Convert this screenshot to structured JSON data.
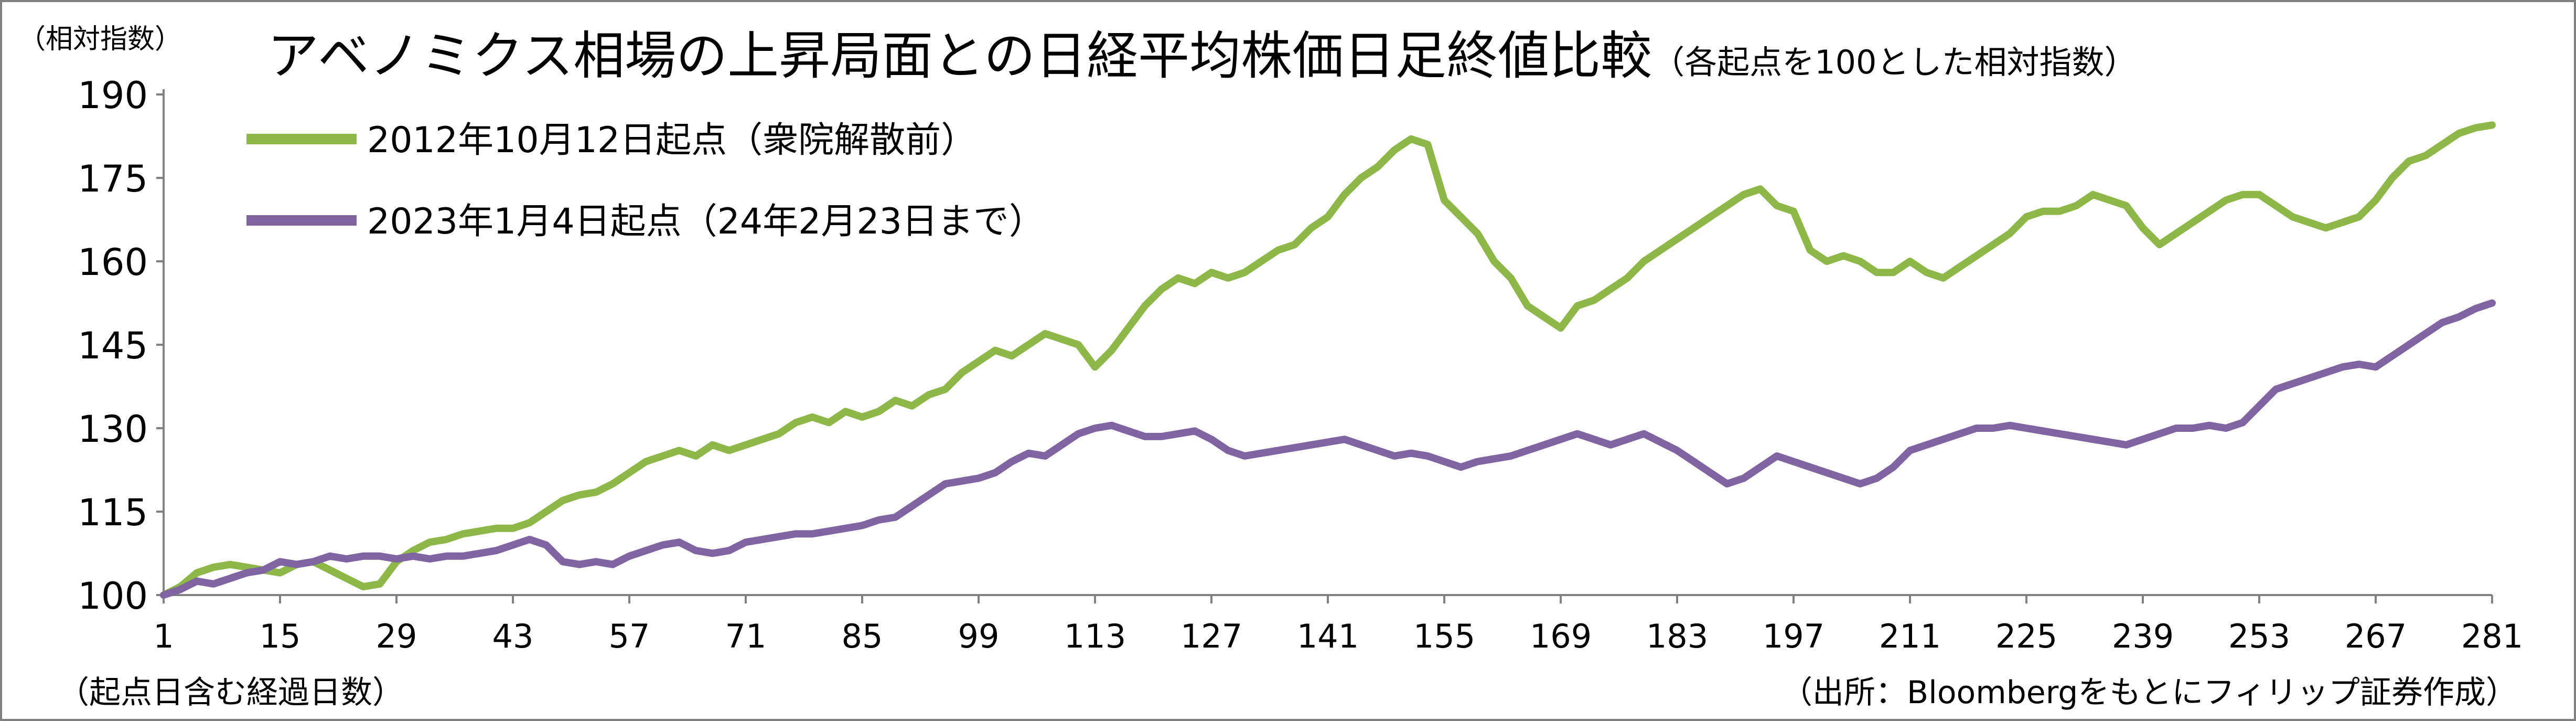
{
  "chart_data": {
    "type": "line",
    "title": "アベノミクス相場の上昇局面との日経平均株価日足終値比較",
    "subtitle": "（各起点を100とした相対指数）",
    "ylabel": "（相対指数）",
    "xlabel": "（起点日含む経過日数）",
    "source": "（出所：Bloombergをもとにフィリップ証券作成）",
    "ylim": [
      100,
      190
    ],
    "xlim": [
      1,
      281
    ],
    "y_ticks": [
      "100",
      "115",
      "130",
      "145",
      "160",
      "175",
      "190"
    ],
    "x_ticks": [
      "1",
      "15",
      "29",
      "43",
      "57",
      "71",
      "85",
      "99",
      "113",
      "127",
      "141",
      "155",
      "169",
      "183",
      "197",
      "211",
      "225",
      "239",
      "253",
      "267",
      "281"
    ],
    "legend_position": "top-left",
    "grid": false,
    "series": [
      {
        "name": "2012年10月12日起点（衆院解散前）",
        "color": "#8DB849",
        "points": [
          [
            1,
            100
          ],
          [
            3,
            101.5
          ],
          [
            5,
            104
          ],
          [
            7,
            105
          ],
          [
            9,
            105.5
          ],
          [
            11,
            105
          ],
          [
            13,
            104.5
          ],
          [
            15,
            104
          ],
          [
            17,
            105.5
          ],
          [
            19,
            106
          ],
          [
            21,
            104.5
          ],
          [
            23,
            103
          ],
          [
            25,
            101.5
          ],
          [
            27,
            102
          ],
          [
            29,
            106
          ],
          [
            31,
            108
          ],
          [
            33,
            109.5
          ],
          [
            35,
            110
          ],
          [
            37,
            111
          ],
          [
            39,
            111.5
          ],
          [
            41,
            112
          ],
          [
            43,
            112
          ],
          [
            45,
            113
          ],
          [
            47,
            115
          ],
          [
            49,
            117
          ],
          [
            51,
            118
          ],
          [
            53,
            118.5
          ],
          [
            55,
            120
          ],
          [
            57,
            122
          ],
          [
            59,
            124
          ],
          [
            61,
            125
          ],
          [
            63,
            126
          ],
          [
            65,
            125
          ],
          [
            67,
            127
          ],
          [
            69,
            126
          ],
          [
            71,
            127
          ],
          [
            73,
            128
          ],
          [
            75,
            129
          ],
          [
            77,
            131
          ],
          [
            79,
            132
          ],
          [
            81,
            131
          ],
          [
            83,
            133
          ],
          [
            85,
            132
          ],
          [
            87,
            133
          ],
          [
            89,
            135
          ],
          [
            91,
            134
          ],
          [
            93,
            136
          ],
          [
            95,
            137
          ],
          [
            97,
            140
          ],
          [
            99,
            142
          ],
          [
            101,
            144
          ],
          [
            103,
            143
          ],
          [
            105,
            145
          ],
          [
            107,
            147
          ],
          [
            109,
            146
          ],
          [
            111,
            145
          ],
          [
            113,
            141
          ],
          [
            115,
            144
          ],
          [
            117,
            148
          ],
          [
            119,
            152
          ],
          [
            121,
            155
          ],
          [
            123,
            157
          ],
          [
            125,
            156
          ],
          [
            127,
            158
          ],
          [
            129,
            157
          ],
          [
            131,
            158
          ],
          [
            133,
            160
          ],
          [
            135,
            162
          ],
          [
            137,
            163
          ],
          [
            139,
            166
          ],
          [
            141,
            168
          ],
          [
            143,
            172
          ],
          [
            145,
            175
          ],
          [
            147,
            177
          ],
          [
            149,
            180
          ],
          [
            151,
            182
          ],
          [
            153,
            181
          ],
          [
            155,
            171
          ],
          [
            157,
            168
          ],
          [
            159,
            165
          ],
          [
            161,
            160
          ],
          [
            163,
            157
          ],
          [
            165,
            152
          ],
          [
            167,
            150
          ],
          [
            169,
            148
          ],
          [
            171,
            152
          ],
          [
            173,
            153
          ],
          [
            175,
            155
          ],
          [
            177,
            157
          ],
          [
            179,
            160
          ],
          [
            181,
            162
          ],
          [
            183,
            164
          ],
          [
            185,
            166
          ],
          [
            187,
            168
          ],
          [
            189,
            170
          ],
          [
            191,
            172
          ],
          [
            193,
            173
          ],
          [
            195,
            170
          ],
          [
            197,
            169
          ],
          [
            199,
            162
          ],
          [
            201,
            160
          ],
          [
            203,
            161
          ],
          [
            205,
            160
          ],
          [
            207,
            158
          ],
          [
            209,
            158
          ],
          [
            211,
            160
          ],
          [
            213,
            158
          ],
          [
            215,
            157
          ],
          [
            217,
            159
          ],
          [
            219,
            161
          ],
          [
            221,
            163
          ],
          [
            223,
            165
          ],
          [
            225,
            168
          ],
          [
            227,
            169
          ],
          [
            229,
            169
          ],
          [
            231,
            170
          ],
          [
            233,
            172
          ],
          [
            235,
            171
          ],
          [
            237,
            170
          ],
          [
            239,
            166
          ],
          [
            241,
            163
          ],
          [
            243,
            165
          ],
          [
            245,
            167
          ],
          [
            247,
            169
          ],
          [
            249,
            171
          ],
          [
            251,
            172
          ],
          [
            253,
            172
          ],
          [
            255,
            170
          ],
          [
            257,
            168
          ],
          [
            259,
            167
          ],
          [
            261,
            166
          ],
          [
            263,
            167
          ],
          [
            265,
            168
          ],
          [
            267,
            171
          ],
          [
            269,
            175
          ],
          [
            271,
            178
          ],
          [
            273,
            179
          ],
          [
            275,
            181
          ],
          [
            277,
            183
          ],
          [
            279,
            184
          ],
          [
            281,
            184.5
          ]
        ]
      },
      {
        "name": "2023年1月4日起点（24年2月23日まで）",
        "color": "#8064A2",
        "points": [
          [
            1,
            100
          ],
          [
            3,
            101
          ],
          [
            5,
            102.5
          ],
          [
            7,
            102
          ],
          [
            9,
            103
          ],
          [
            11,
            104
          ],
          [
            13,
            104.5
          ],
          [
            15,
            106
          ],
          [
            17,
            105.5
          ],
          [
            19,
            106
          ],
          [
            21,
            107
          ],
          [
            23,
            106.5
          ],
          [
            25,
            107
          ],
          [
            27,
            107
          ],
          [
            29,
            106.5
          ],
          [
            31,
            107
          ],
          [
            33,
            106.5
          ],
          [
            35,
            107
          ],
          [
            37,
            107
          ],
          [
            39,
            107.5
          ],
          [
            41,
            108
          ],
          [
            43,
            109
          ],
          [
            45,
            110
          ],
          [
            47,
            109
          ],
          [
            49,
            106
          ],
          [
            51,
            105.5
          ],
          [
            53,
            106
          ],
          [
            55,
            105.5
          ],
          [
            57,
            107
          ],
          [
            59,
            108
          ],
          [
            61,
            109
          ],
          [
            63,
            109.5
          ],
          [
            65,
            108
          ],
          [
            67,
            107.5
          ],
          [
            69,
            108
          ],
          [
            71,
            109.5
          ],
          [
            73,
            110
          ],
          [
            75,
            110.5
          ],
          [
            77,
            111
          ],
          [
            79,
            111
          ],
          [
            81,
            111.5
          ],
          [
            83,
            112
          ],
          [
            85,
            112.5
          ],
          [
            87,
            113.5
          ],
          [
            89,
            114
          ],
          [
            91,
            116
          ],
          [
            93,
            118
          ],
          [
            95,
            120
          ],
          [
            97,
            120.5
          ],
          [
            99,
            121
          ],
          [
            101,
            122
          ],
          [
            103,
            124
          ],
          [
            105,
            125.5
          ],
          [
            107,
            125
          ],
          [
            109,
            127
          ],
          [
            111,
            129
          ],
          [
            113,
            130
          ],
          [
            115,
            130.5
          ],
          [
            117,
            129.5
          ],
          [
            119,
            128.5
          ],
          [
            121,
            128.5
          ],
          [
            123,
            129
          ],
          [
            125,
            129.5
          ],
          [
            127,
            128
          ],
          [
            129,
            126
          ],
          [
            131,
            125
          ],
          [
            133,
            125.5
          ],
          [
            135,
            126
          ],
          [
            137,
            126.5
          ],
          [
            139,
            127
          ],
          [
            141,
            127.5
          ],
          [
            143,
            128
          ],
          [
            145,
            127
          ],
          [
            147,
            126
          ],
          [
            149,
            125
          ],
          [
            151,
            125.5
          ],
          [
            153,
            125
          ],
          [
            155,
            124
          ],
          [
            157,
            123
          ],
          [
            159,
            124
          ],
          [
            161,
            124.5
          ],
          [
            163,
            125
          ],
          [
            165,
            126
          ],
          [
            167,
            127
          ],
          [
            169,
            128
          ],
          [
            171,
            129
          ],
          [
            173,
            128
          ],
          [
            175,
            127
          ],
          [
            177,
            128
          ],
          [
            179,
            129
          ],
          [
            181,
            127.5
          ],
          [
            183,
            126
          ],
          [
            185,
            124
          ],
          [
            187,
            122
          ],
          [
            189,
            120
          ],
          [
            191,
            121
          ],
          [
            193,
            123
          ],
          [
            195,
            125
          ],
          [
            197,
            124
          ],
          [
            199,
            123
          ],
          [
            201,
            122
          ],
          [
            203,
            121
          ],
          [
            205,
            120
          ],
          [
            207,
            121
          ],
          [
            209,
            123
          ],
          [
            211,
            126
          ],
          [
            213,
            127
          ],
          [
            215,
            128
          ],
          [
            217,
            129
          ],
          [
            219,
            130
          ],
          [
            221,
            130
          ],
          [
            223,
            130.5
          ],
          [
            225,
            130
          ],
          [
            227,
            129.5
          ],
          [
            229,
            129
          ],
          [
            231,
            128.5
          ],
          [
            233,
            128
          ],
          [
            235,
            127.5
          ],
          [
            237,
            127
          ],
          [
            239,
            128
          ],
          [
            241,
            129
          ],
          [
            243,
            130
          ],
          [
            245,
            130
          ],
          [
            247,
            130.5
          ],
          [
            249,
            130
          ],
          [
            251,
            131
          ],
          [
            253,
            134
          ],
          [
            255,
            137
          ],
          [
            257,
            138
          ],
          [
            259,
            139
          ],
          [
            261,
            140
          ],
          [
            263,
            141
          ],
          [
            265,
            141.5
          ],
          [
            267,
            141
          ],
          [
            269,
            143
          ],
          [
            271,
            145
          ],
          [
            273,
            147
          ],
          [
            275,
            149
          ],
          [
            277,
            150
          ],
          [
            279,
            151.5
          ],
          [
            281,
            152.5
          ]
        ]
      }
    ]
  }
}
